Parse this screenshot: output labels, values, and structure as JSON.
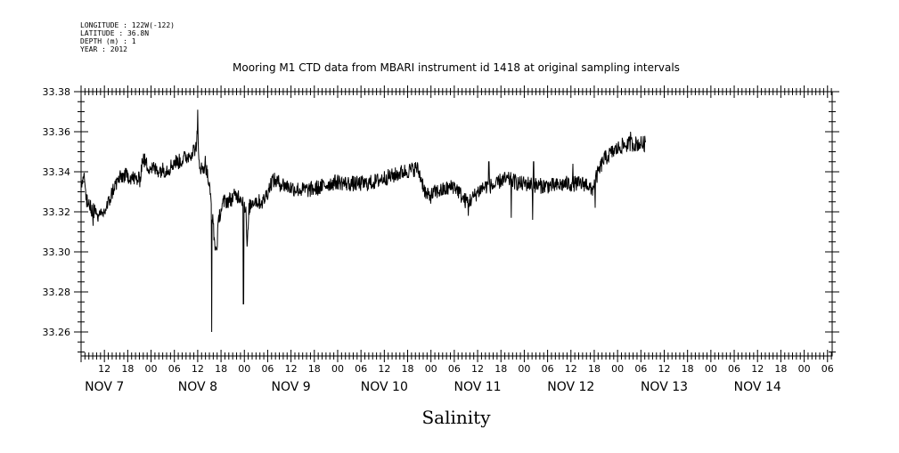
{
  "header": {
    "meta_lines": [
      "LONGITUDE : 122W(-122)",
      "LATITUDE : 36.8N",
      "DEPTH (m) : 1",
      "YEAR : 2012"
    ]
  },
  "chart_data": {
    "type": "line",
    "title": "Mooring M1 CTD data from MBARI instrument id 1418 at original sampling intervals",
    "xlabel": "Salinity",
    "ylabel": "",
    "xlim": [
      6.25,
      14.3
    ],
    "ylim": [
      33.248,
      33.38
    ],
    "y_ticks": [
      "33.38",
      "33.36",
      "33.34",
      "33.32",
      "33.30",
      "33.28",
      "33.26"
    ],
    "y_tick_values": [
      33.38,
      33.36,
      33.34,
      33.32,
      33.3,
      33.28,
      33.26
    ],
    "x_hour_labels": [
      {
        "x": 6.5,
        "label": "12"
      },
      {
        "x": 6.75,
        "label": "18"
      },
      {
        "x": 7.0,
        "label": "00"
      },
      {
        "x": 7.25,
        "label": "06"
      },
      {
        "x": 7.5,
        "label": "12"
      },
      {
        "x": 7.75,
        "label": "18"
      },
      {
        "x": 8.0,
        "label": "00"
      },
      {
        "x": 8.25,
        "label": "06"
      },
      {
        "x": 8.5,
        "label": "12"
      },
      {
        "x": 8.75,
        "label": "18"
      },
      {
        "x": 9.0,
        "label": "00"
      },
      {
        "x": 9.25,
        "label": "06"
      },
      {
        "x": 9.5,
        "label": "12"
      },
      {
        "x": 9.75,
        "label": "18"
      },
      {
        "x": 10.0,
        "label": "00"
      },
      {
        "x": 10.25,
        "label": "06"
      },
      {
        "x": 10.5,
        "label": "12"
      },
      {
        "x": 10.75,
        "label": "18"
      },
      {
        "x": 11.0,
        "label": "00"
      },
      {
        "x": 11.25,
        "label": "06"
      },
      {
        "x": 11.5,
        "label": "12"
      },
      {
        "x": 11.75,
        "label": "18"
      },
      {
        "x": 12.0,
        "label": "00"
      },
      {
        "x": 12.25,
        "label": "06"
      },
      {
        "x": 12.5,
        "label": "12"
      },
      {
        "x": 12.75,
        "label": "18"
      },
      {
        "x": 13.0,
        "label": "00"
      },
      {
        "x": 13.25,
        "label": "06"
      },
      {
        "x": 13.5,
        "label": "12"
      },
      {
        "x": 13.75,
        "label": "18"
      },
      {
        "x": 14.0,
        "label": "00"
      },
      {
        "x": 14.25,
        "label": "06"
      }
    ],
    "x_day_labels": [
      {
        "x": 6.5,
        "label": "NOV  7"
      },
      {
        "x": 7.5,
        "label": "NOV  8"
      },
      {
        "x": 8.5,
        "label": "NOV  9"
      },
      {
        "x": 9.5,
        "label": "NOV 10"
      },
      {
        "x": 10.5,
        "label": "NOV 11"
      },
      {
        "x": 11.5,
        "label": "NOV 12"
      },
      {
        "x": 12.5,
        "label": "NOV 13"
      },
      {
        "x": 13.5,
        "label": "NOV 14"
      }
    ],
    "grid": false,
    "legend": "none",
    "series": [
      {
        "color": "#000000",
        "anchors": [
          [
            6.25,
            33.331
          ],
          [
            6.28,
            33.338
          ],
          [
            6.31,
            33.325
          ],
          [
            6.35,
            33.322
          ],
          [
            6.4,
            33.32
          ],
          [
            6.45,
            33.317
          ],
          [
            6.5,
            33.32
          ],
          [
            6.55,
            33.325
          ],
          [
            6.6,
            33.332
          ],
          [
            6.65,
            33.336
          ],
          [
            6.7,
            33.338
          ],
          [
            6.75,
            33.338
          ],
          [
            6.8,
            33.337
          ],
          [
            6.85,
            33.336
          ],
          [
            6.88,
            33.336
          ],
          [
            6.91,
            33.347
          ],
          [
            6.96,
            33.343
          ],
          [
            7.05,
            33.341
          ],
          [
            7.15,
            33.341
          ],
          [
            7.2,
            33.342
          ],
          [
            7.25,
            33.345
          ],
          [
            7.3,
            33.345
          ],
          [
            7.4,
            33.348
          ],
          [
            7.48,
            33.352
          ],
          [
            7.5,
            33.36
          ],
          [
            7.51,
            33.346
          ],
          [
            7.55,
            33.34
          ],
          [
            7.58,
            33.345
          ],
          [
            7.62,
            33.334
          ],
          [
            7.65,
            33.322
          ],
          [
            7.68,
            33.305
          ],
          [
            7.7,
            33.3
          ],
          [
            7.73,
            33.318
          ],
          [
            7.78,
            33.325
          ],
          [
            7.85,
            33.326
          ],
          [
            7.9,
            33.328
          ],
          [
            7.95,
            33.328
          ],
          [
            8.0,
            33.325
          ],
          [
            8.02,
            33.318
          ],
          [
            8.03,
            33.3
          ],
          [
            8.05,
            33.322
          ],
          [
            8.1,
            33.326
          ],
          [
            8.15,
            33.325
          ],
          [
            8.2,
            33.325
          ],
          [
            8.25,
            33.33
          ],
          [
            8.3,
            33.336
          ],
          [
            8.35,
            33.335
          ],
          [
            8.4,
            33.334
          ],
          [
            8.5,
            33.332
          ],
          [
            8.6,
            33.331
          ],
          [
            8.7,
            33.331
          ],
          [
            8.8,
            33.332
          ],
          [
            8.9,
            33.334
          ],
          [
            9.0,
            33.335
          ],
          [
            9.1,
            33.334
          ],
          [
            9.2,
            33.334
          ],
          [
            9.3,
            33.334
          ],
          [
            9.4,
            33.335
          ],
          [
            9.5,
            33.337
          ],
          [
            9.6,
            33.338
          ],
          [
            9.7,
            33.34
          ],
          [
            9.8,
            33.341
          ],
          [
            9.85,
            33.342
          ],
          [
            9.9,
            33.336
          ],
          [
            9.95,
            33.328
          ],
          [
            10.0,
            33.328
          ],
          [
            10.05,
            33.33
          ],
          [
            10.15,
            33.331
          ],
          [
            10.25,
            33.333
          ],
          [
            10.3,
            33.33
          ],
          [
            10.35,
            33.326
          ],
          [
            10.4,
            33.325
          ],
          [
            10.45,
            33.327
          ],
          [
            10.5,
            33.33
          ],
          [
            10.55,
            33.332
          ],
          [
            10.6,
            33.333
          ],
          [
            10.7,
            33.333
          ],
          [
            10.75,
            33.336
          ],
          [
            10.85,
            33.336
          ],
          [
            10.95,
            33.334
          ],
          [
            11.05,
            33.334
          ],
          [
            11.15,
            33.333
          ],
          [
            11.25,
            33.333
          ],
          [
            11.35,
            33.333
          ],
          [
            11.45,
            33.334
          ],
          [
            11.6,
            33.334
          ],
          [
            11.68,
            33.334
          ],
          [
            11.72,
            33.33
          ],
          [
            11.77,
            33.337
          ],
          [
            11.85,
            33.346
          ],
          [
            11.95,
            33.35
          ],
          [
            12.05,
            33.353
          ],
          [
            12.15,
            33.354
          ],
          [
            12.3,
            33.354
          ]
        ],
        "spikes": [
          [
            7.65,
            33.26
          ],
          [
            7.99,
            33.274
          ],
          [
            7.5,
            33.371
          ],
          [
            12.14,
            33.36
          ],
          [
            10.4,
            33.318
          ],
          [
            11.09,
            33.316
          ],
          [
            10.86,
            33.317
          ],
          [
            11.76,
            33.322
          ],
          [
            6.38,
            33.313
          ],
          [
            11.1,
            33.345
          ],
          [
            10.62,
            33.345
          ],
          [
            11.52,
            33.344
          ]
        ]
      }
    ]
  }
}
